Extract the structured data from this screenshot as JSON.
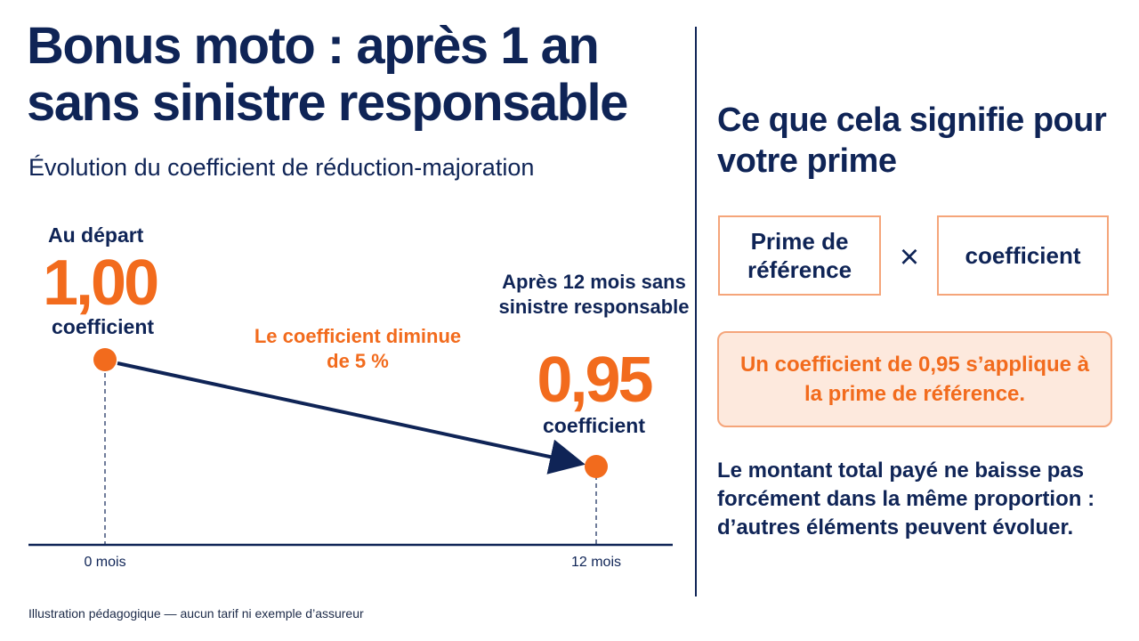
{
  "colors": {
    "navy": "#0f2456",
    "orange": "#f26b1d",
    "orange_soft": "#f5a57a"
  },
  "header": {
    "title_line1": "Bonus moto : après 1 an",
    "title_line2": "sans sinistre responsable",
    "subtitle": "Évolution du coefficient de réduction-majoration"
  },
  "timeline": {
    "start_label": "Au départ",
    "start_value": "1,00",
    "start_unit": "coefficient",
    "end_label": "Après 12 mois sans sinistre responsable",
    "end_value": "0,95",
    "end_unit": "coefficient",
    "change_note": "Le coefficient diminue de 5 %",
    "tick_start": "0 mois",
    "tick_end": "12 mois"
  },
  "panel": {
    "title": "Ce que cela signifie pour votre prime",
    "formula_left": "Prime de référence",
    "formula_operator": "×",
    "formula_right": "coefficient",
    "callout": "Un coefficient de 0,95 s’applique à la prime de référence.",
    "note": "Le montant total payé ne baisse pas forcément dans la même proportion : d’autres éléments peuvent évoluer."
  },
  "footnote": "Illustration pédagogique — aucun tarif ni exemple d’assureur"
}
